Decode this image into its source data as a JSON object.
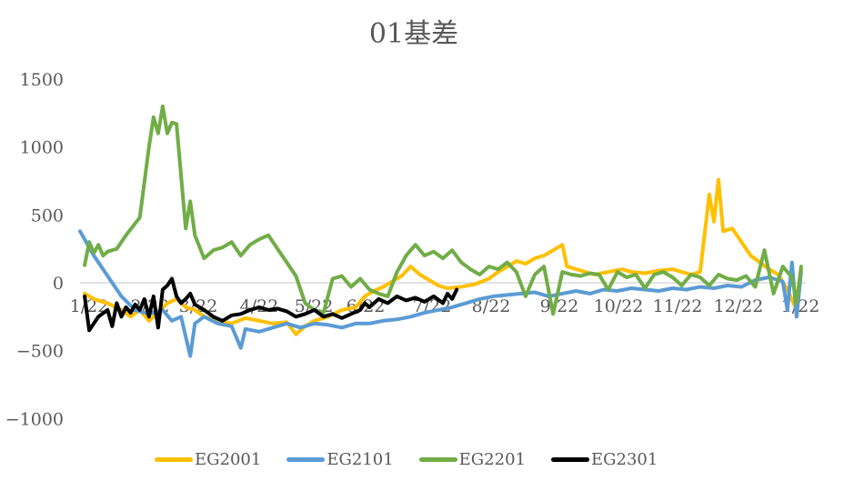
{
  "chart_data": {
    "type": "line",
    "title": "01基差",
    "xlabel": "",
    "ylabel": "",
    "ylim": [
      -1000,
      1500
    ],
    "yticks": [
      1500,
      1000,
      500,
      0,
      -500,
      -1000
    ],
    "x_tick_labels": [
      "1/22",
      "2/22",
      "3/22",
      "4/22",
      "5/22",
      "6/22",
      "7/22",
      "8/22",
      "9/22",
      "10/22",
      "11/22",
      "12/22",
      "1/22"
    ],
    "grid": false,
    "zero_line": true,
    "legend_position": "bottom",
    "series": [
      {
        "name": "EG2001",
        "color": "#FFC000",
        "points": [
          [
            0.1,
            -80
          ],
          [
            0.3,
            -120
          ],
          [
            0.6,
            -150
          ],
          [
            0.9,
            -200
          ],
          [
            1.1,
            -250
          ],
          [
            1.3,
            -200
          ],
          [
            1.5,
            -280
          ],
          [
            1.7,
            -220
          ],
          [
            1.9,
            -150
          ],
          [
            2.1,
            -120
          ],
          [
            2.3,
            -180
          ],
          [
            2.5,
            -200
          ],
          [
            2.7,
            -250
          ],
          [
            3.0,
            -280
          ],
          [
            3.3,
            -300
          ],
          [
            3.6,
            -260
          ],
          [
            3.9,
            -280
          ],
          [
            4.2,
            -300
          ],
          [
            4.5,
            -290
          ],
          [
            4.7,
            -380
          ],
          [
            4.9,
            -320
          ],
          [
            5.1,
            -280
          ],
          [
            5.4,
            -250
          ],
          [
            5.7,
            -200
          ],
          [
            6.0,
            -180
          ],
          [
            6.2,
            -100
          ],
          [
            6.4,
            -60
          ],
          [
            6.6,
            -30
          ],
          [
            6.8,
            10
          ],
          [
            7.0,
            50
          ],
          [
            7.2,
            120
          ],
          [
            7.4,
            60
          ],
          [
            7.6,
            20
          ],
          [
            7.8,
            -20
          ],
          [
            8.0,
            -40
          ],
          [
            8.3,
            -30
          ],
          [
            8.6,
            -10
          ],
          [
            8.9,
            30
          ],
          [
            9.1,
            80
          ],
          [
            9.3,
            120
          ],
          [
            9.5,
            160
          ],
          [
            9.7,
            140
          ],
          [
            9.9,
            180
          ],
          [
            10.1,
            200
          ],
          [
            10.3,
            240
          ],
          [
            10.5,
            280
          ],
          [
            10.6,
            120
          ],
          [
            10.8,
            100
          ],
          [
            11.0,
            80
          ],
          [
            11.2,
            60
          ],
          [
            11.5,
            80
          ],
          [
            11.8,
            100
          ],
          [
            12.0,
            80
          ],
          [
            12.3,
            70
          ],
          [
            12.6,
            90
          ],
          [
            12.9,
            100
          ],
          [
            13.1,
            80
          ],
          [
            13.3,
            60
          ],
          [
            13.5,
            80
          ],
          [
            13.7,
            650
          ],
          [
            13.8,
            450
          ],
          [
            13.9,
            760
          ],
          [
            14.0,
            380
          ],
          [
            14.2,
            400
          ],
          [
            14.4,
            300
          ],
          [
            14.6,
            200
          ],
          [
            14.8,
            150
          ],
          [
            15.0,
            100
          ],
          [
            15.2,
            60
          ],
          [
            15.4,
            -50
          ],
          [
            15.6,
            -200
          ],
          [
            15.7,
            100
          ]
        ]
      },
      {
        "name": "EG2101",
        "color": "#5B9BD5",
        "points": [
          [
            0.0,
            380
          ],
          [
            0.3,
            200
          ],
          [
            0.6,
            50
          ],
          [
            0.9,
            -100
          ],
          [
            1.2,
            -200
          ],
          [
            1.5,
            -230
          ],
          [
            1.8,
            -200
          ],
          [
            2.0,
            -280
          ],
          [
            2.2,
            -250
          ],
          [
            2.4,
            -540
          ],
          [
            2.5,
            -300
          ],
          [
            2.7,
            -250
          ],
          [
            3.0,
            -300
          ],
          [
            3.3,
            -320
          ],
          [
            3.5,
            -480
          ],
          [
            3.6,
            -340
          ],
          [
            3.9,
            -360
          ],
          [
            4.2,
            -330
          ],
          [
            4.5,
            -300
          ],
          [
            4.8,
            -330
          ],
          [
            5.1,
            -300
          ],
          [
            5.4,
            -310
          ],
          [
            5.7,
            -330
          ],
          [
            6.0,
            -300
          ],
          [
            6.3,
            -300
          ],
          [
            6.6,
            -280
          ],
          [
            6.9,
            -270
          ],
          [
            7.2,
            -250
          ],
          [
            7.5,
            -220
          ],
          [
            7.8,
            -200
          ],
          [
            8.1,
            -180
          ],
          [
            8.4,
            -150
          ],
          [
            8.7,
            -120
          ],
          [
            9.0,
            -100
          ],
          [
            9.3,
            -90
          ],
          [
            9.6,
            -80
          ],
          [
            9.9,
            -70
          ],
          [
            10.2,
            -100
          ],
          [
            10.5,
            -80
          ],
          [
            10.8,
            -60
          ],
          [
            11.1,
            -80
          ],
          [
            11.4,
            -50
          ],
          [
            11.7,
            -60
          ],
          [
            12.0,
            -40
          ],
          [
            12.3,
            -50
          ],
          [
            12.6,
            -60
          ],
          [
            12.9,
            -40
          ],
          [
            13.2,
            -50
          ],
          [
            13.5,
            -30
          ],
          [
            13.8,
            -40
          ],
          [
            14.1,
            -20
          ],
          [
            14.4,
            -30
          ],
          [
            14.7,
            20
          ],
          [
            15.0,
            40
          ],
          [
            15.3,
            10
          ],
          [
            15.4,
            -200
          ],
          [
            15.5,
            150
          ],
          [
            15.6,
            -250
          ],
          [
            15.7,
            80
          ]
        ]
      },
      {
        "name": "EG2201",
        "color": "#70AD47",
        "points": [
          [
            0.1,
            130
          ],
          [
            0.2,
            300
          ],
          [
            0.3,
            220
          ],
          [
            0.4,
            280
          ],
          [
            0.5,
            200
          ],
          [
            0.6,
            230
          ],
          [
            0.8,
            250
          ],
          [
            1.0,
            350
          ],
          [
            1.3,
            480
          ],
          [
            1.5,
            1000
          ],
          [
            1.6,
            1220
          ],
          [
            1.7,
            1100
          ],
          [
            1.8,
            1300
          ],
          [
            1.9,
            1100
          ],
          [
            2.0,
            1180
          ],
          [
            2.1,
            1170
          ],
          [
            2.3,
            400
          ],
          [
            2.4,
            600
          ],
          [
            2.5,
            350
          ],
          [
            2.7,
            180
          ],
          [
            2.9,
            240
          ],
          [
            3.1,
            260
          ],
          [
            3.3,
            300
          ],
          [
            3.5,
            200
          ],
          [
            3.7,
            280
          ],
          [
            3.9,
            320
          ],
          [
            4.1,
            350
          ],
          [
            4.3,
            250
          ],
          [
            4.5,
            150
          ],
          [
            4.7,
            50
          ],
          [
            4.9,
            -150
          ],
          [
            5.1,
            -200
          ],
          [
            5.3,
            -220
          ],
          [
            5.5,
            30
          ],
          [
            5.7,
            50
          ],
          [
            5.9,
            -30
          ],
          [
            6.1,
            30
          ],
          [
            6.3,
            -50
          ],
          [
            6.5,
            -80
          ],
          [
            6.7,
            -100
          ],
          [
            6.9,
            80
          ],
          [
            7.1,
            200
          ],
          [
            7.3,
            280
          ],
          [
            7.5,
            200
          ],
          [
            7.7,
            230
          ],
          [
            7.9,
            180
          ],
          [
            8.1,
            240
          ],
          [
            8.3,
            150
          ],
          [
            8.5,
            100
          ],
          [
            8.7,
            60
          ],
          [
            8.9,
            120
          ],
          [
            9.1,
            100
          ],
          [
            9.3,
            150
          ],
          [
            9.5,
            80
          ],
          [
            9.7,
            -100
          ],
          [
            9.9,
            60
          ],
          [
            10.1,
            120
          ],
          [
            10.3,
            -230
          ],
          [
            10.5,
            80
          ],
          [
            10.7,
            60
          ],
          [
            10.9,
            50
          ],
          [
            11.1,
            70
          ],
          [
            11.3,
            60
          ],
          [
            11.5,
            -50
          ],
          [
            11.7,
            80
          ],
          [
            11.9,
            40
          ],
          [
            12.1,
            60
          ],
          [
            12.3,
            -40
          ],
          [
            12.5,
            60
          ],
          [
            12.7,
            80
          ],
          [
            12.9,
            40
          ],
          [
            13.1,
            -20
          ],
          [
            13.3,
            60
          ],
          [
            13.5,
            40
          ],
          [
            13.7,
            -20
          ],
          [
            13.9,
            60
          ],
          [
            14.1,
            30
          ],
          [
            14.3,
            20
          ],
          [
            14.5,
            50
          ],
          [
            14.7,
            -30
          ],
          [
            14.9,
            240
          ],
          [
            15.1,
            -80
          ],
          [
            15.3,
            120
          ],
          [
            15.5,
            40
          ],
          [
            15.6,
            -150
          ],
          [
            15.7,
            120
          ]
        ]
      },
      {
        "name": "EG2301",
        "color": "#000000",
        "points": [
          [
            0.1,
            -100
          ],
          [
            0.2,
            -350
          ],
          [
            0.4,
            -250
          ],
          [
            0.6,
            -200
          ],
          [
            0.7,
            -320
          ],
          [
            0.8,
            -150
          ],
          [
            0.9,
            -250
          ],
          [
            1.0,
            -180
          ],
          [
            1.1,
            -220
          ],
          [
            1.2,
            -160
          ],
          [
            1.3,
            -200
          ],
          [
            1.4,
            -120
          ],
          [
            1.5,
            -250
          ],
          [
            1.6,
            -100
          ],
          [
            1.7,
            -330
          ],
          [
            1.8,
            -50
          ],
          [
            1.9,
            -20
          ],
          [
            2.0,
            30
          ],
          [
            2.1,
            -100
          ],
          [
            2.2,
            -150
          ],
          [
            2.3,
            -120
          ],
          [
            2.4,
            -80
          ],
          [
            2.5,
            -160
          ],
          [
            2.7,
            -200
          ],
          [
            2.9,
            -250
          ],
          [
            3.1,
            -280
          ],
          [
            3.3,
            -240
          ],
          [
            3.5,
            -230
          ],
          [
            3.7,
            -200
          ],
          [
            3.9,
            -180
          ],
          [
            4.1,
            -200
          ],
          [
            4.3,
            -190
          ],
          [
            4.5,
            -210
          ],
          [
            4.7,
            -250
          ],
          [
            4.9,
            -230
          ],
          [
            5.1,
            -200
          ],
          [
            5.3,
            -250
          ],
          [
            5.5,
            -230
          ],
          [
            5.7,
            -260
          ],
          [
            5.9,
            -230
          ],
          [
            6.1,
            -200
          ],
          [
            6.2,
            -150
          ],
          [
            6.3,
            -180
          ],
          [
            6.5,
            -120
          ],
          [
            6.7,
            -150
          ],
          [
            6.9,
            -100
          ],
          [
            7.1,
            -130
          ],
          [
            7.3,
            -110
          ],
          [
            7.5,
            -140
          ],
          [
            7.7,
            -100
          ],
          [
            7.9,
            -150
          ],
          [
            8.0,
            -80
          ],
          [
            8.1,
            -120
          ],
          [
            8.2,
            -50
          ]
        ]
      }
    ]
  },
  "legend": [
    {
      "label": "EG2001",
      "color": "#FFC000"
    },
    {
      "label": "EG2101",
      "color": "#5B9BD5"
    },
    {
      "label": "EG2201",
      "color": "#70AD47"
    },
    {
      "label": "EG2301",
      "color": "#000000"
    }
  ]
}
